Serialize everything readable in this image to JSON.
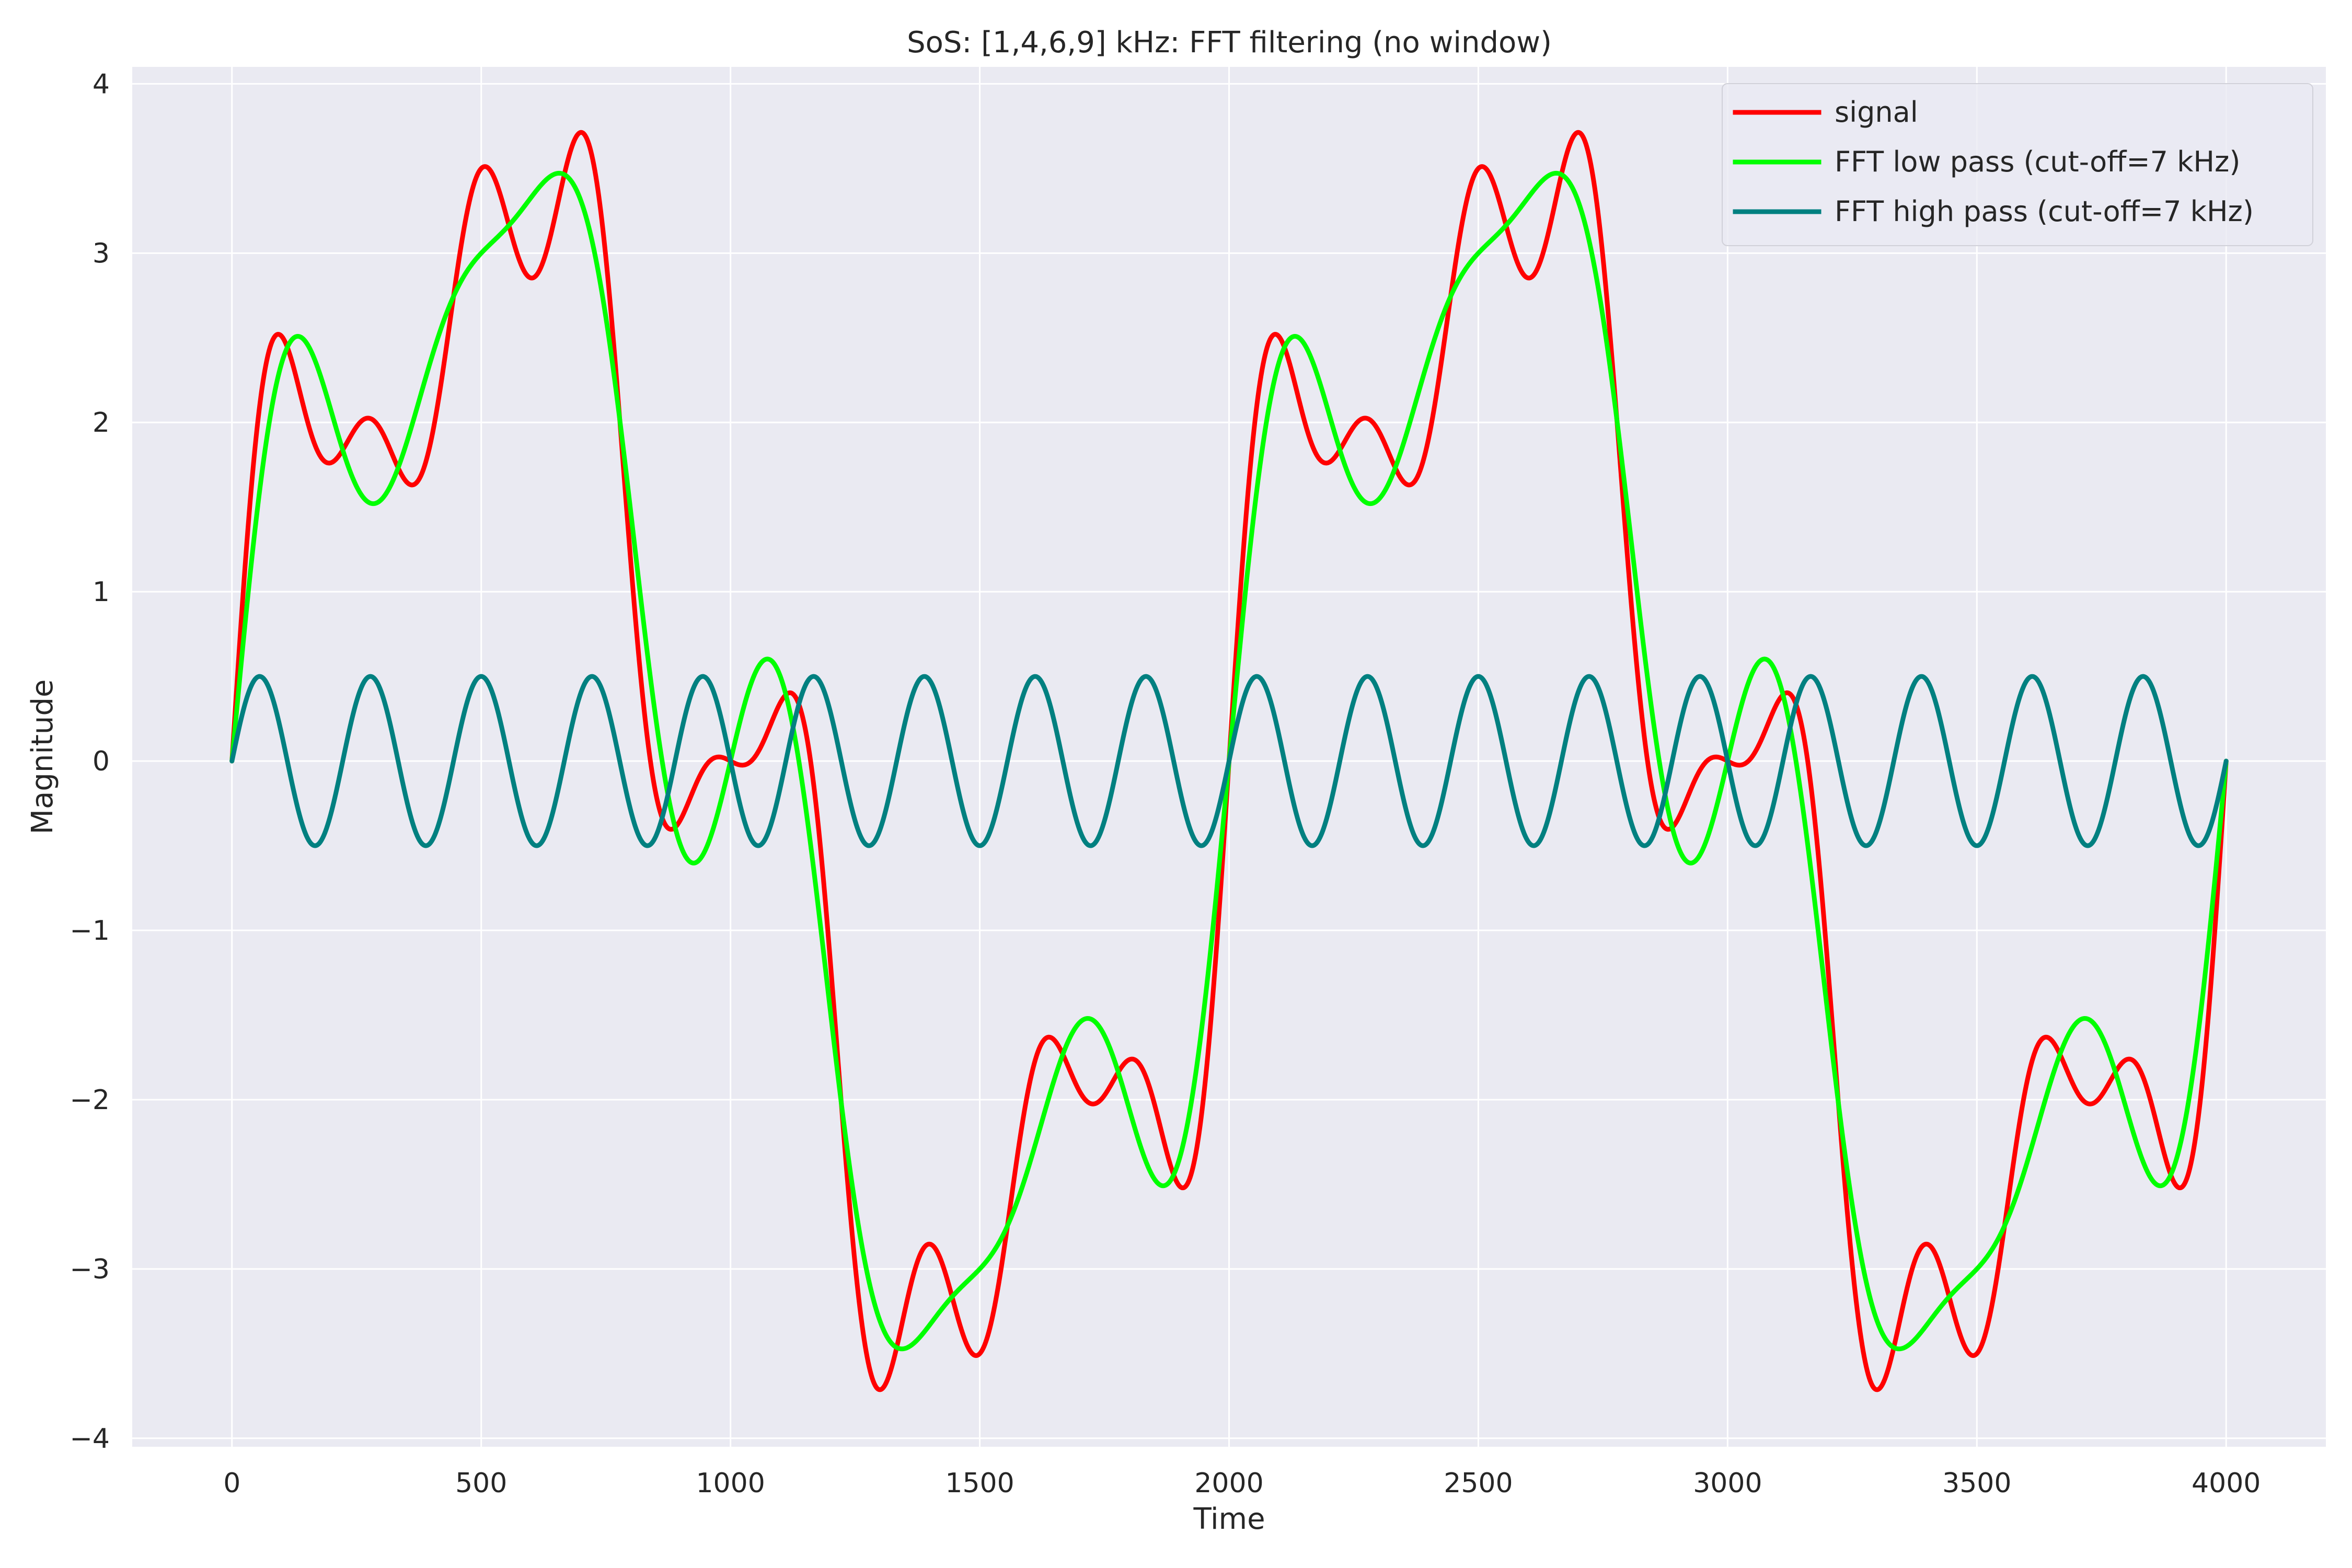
{
  "chart_data": {
    "type": "line",
    "title": "SoS: [1,4,6,9] kHz: FFT filtering (no window)",
    "xlabel": "Time",
    "ylabel": "Magnitude",
    "xlim": [
      -200,
      4200
    ],
    "ylim": [
      -4.05,
      4.1
    ],
    "xticks": [
      0,
      500,
      1000,
      1500,
      2000,
      2500,
      3000,
      3500,
      4000
    ],
    "xtick_labels": [
      "0",
      "500",
      "1000",
      "1500",
      "2000",
      "2500",
      "3000",
      "3500",
      "4000"
    ],
    "yticks": [
      -4,
      -3,
      -2,
      -1,
      0,
      1,
      2,
      3,
      4
    ],
    "ytick_labels": [
      "−4",
      "−3",
      "−2",
      "−1",
      "0",
      "1",
      "2",
      "3",
      "4"
    ],
    "grid": true,
    "legend_position": "top-right",
    "x_range": [
      0,
      4000
    ],
    "period": 2000,
    "series": [
      {
        "name": "signal",
        "color": "#ff0000",
        "components": [
          {
            "amplitude": 3,
            "cycles_per_period": 1
          },
          {
            "amplitude": 1,
            "cycles_per_period": 4
          },
          {
            "amplitude": 0.5,
            "cycles_per_period": 6
          },
          {
            "amplitude": 0.5,
            "cycles_per_period": 9
          }
        ]
      },
      {
        "name": "FFT low pass (cut-off=7 kHz)",
        "color": "#00ff00",
        "components": [
          {
            "amplitude": 3,
            "cycles_per_period": 1
          },
          {
            "amplitude": 1,
            "cycles_per_period": 4
          },
          {
            "amplitude": 0.5,
            "cycles_per_period": 6
          }
        ]
      },
      {
        "name": "FFT high pass (cut-off=7 kHz)",
        "color": "#008080",
        "components": [
          {
            "amplitude": 0.5,
            "cycles_per_period": 9
          }
        ]
      }
    ]
  }
}
